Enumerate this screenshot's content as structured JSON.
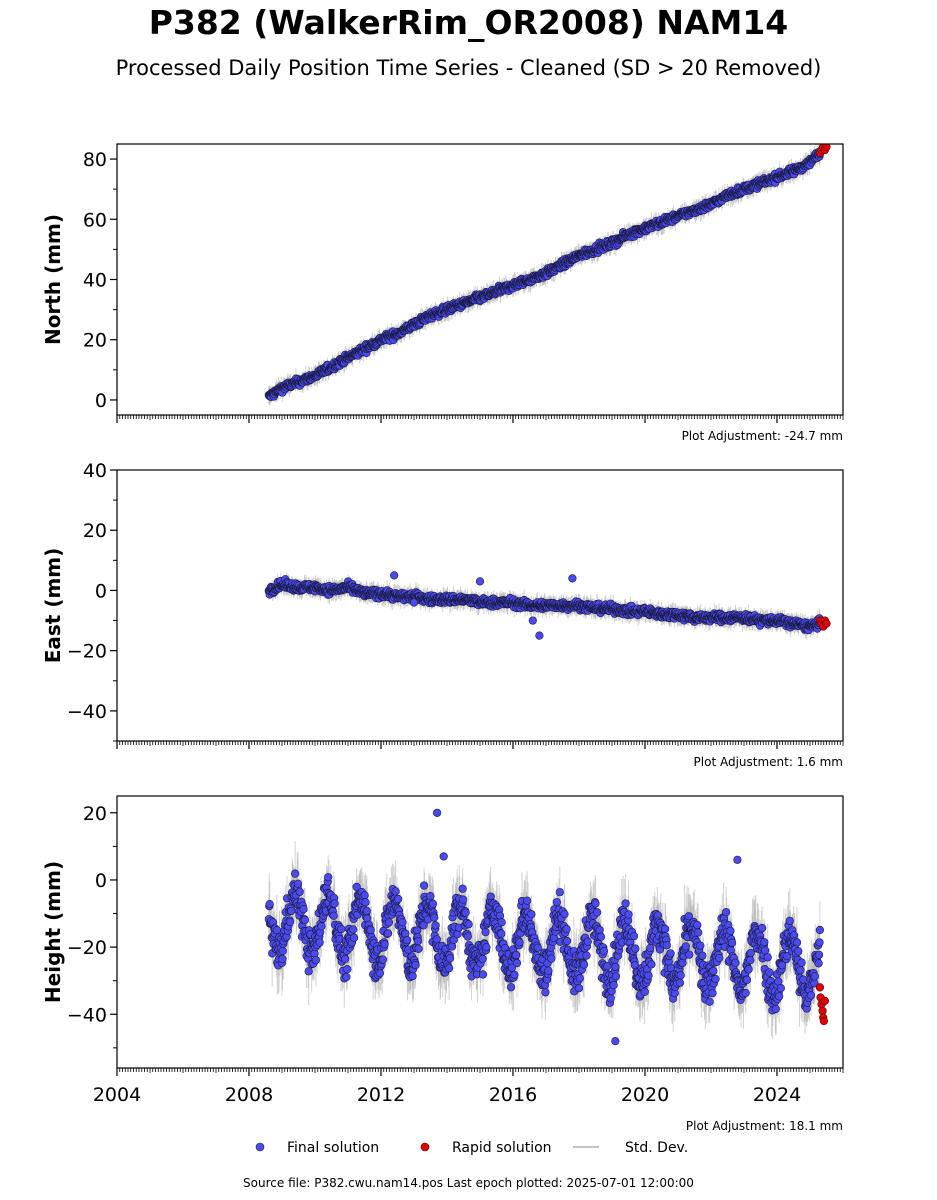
{
  "title": "P382 (WalkerRim_OR2008) NAM14",
  "subtitle": "Processed Daily Position Time Series - Cleaned (SD > 20 Removed)",
  "source_note": "Source file: P382.cwu.nam14.pos  Last epoch plotted: 2025-07-01 12:00:00",
  "colors": {
    "final": "#4a4aee",
    "final_edge": "#1a1a40",
    "rapid": "#e00000",
    "stddev": "#b0b0b0"
  },
  "chart_data": [
    {
      "type": "scatter",
      "ylabel": "North (mm)",
      "xlim": [
        2004.0,
        2026.0
      ],
      "ylim": [
        -5,
        85
      ],
      "yticks": [
        0,
        20,
        40,
        60,
        80
      ],
      "xtick_labels_shown": false,
      "adjustment": "Plot Adjustment: -24.7 mm",
      "series": [
        {
          "name": "Final solution",
          "x": [
            2008.6,
            2009.0,
            2009.5,
            2010.0,
            2010.5,
            2011.0,
            2011.5,
            2012.0,
            2012.5,
            2013.0,
            2013.5,
            2014.0,
            2014.5,
            2015.0,
            2015.5,
            2016.0,
            2016.5,
            2017.0,
            2017.5,
            2018.0,
            2018.5,
            2019.0,
            2019.5,
            2020.0,
            2020.5,
            2021.0,
            2021.5,
            2022.0,
            2022.5,
            2023.0,
            2023.5,
            2024.0,
            2024.5,
            2025.0,
            2025.3
          ],
          "y": [
            1,
            4,
            6,
            8,
            11,
            14,
            17,
            20,
            22,
            25,
            28,
            30,
            32,
            34,
            36,
            38,
            40,
            42,
            45,
            48,
            50,
            52,
            55,
            57,
            59,
            61,
            63,
            65,
            68,
            70,
            72,
            74,
            76,
            79,
            82
          ]
        },
        {
          "name": "Rapid solution",
          "x": [
            2025.3,
            2025.35,
            2025.4,
            2025.45,
            2025.5
          ],
          "y": [
            82,
            83,
            84,
            83,
            84
          ]
        }
      ]
    },
    {
      "type": "scatter",
      "ylabel": "East (mm)",
      "xlim": [
        2004.0,
        2026.0
      ],
      "ylim": [
        -50,
        40
      ],
      "yticks": [
        -40,
        -20,
        0,
        20,
        40
      ],
      "xtick_labels_shown": false,
      "adjustment": "Plot Adjustment: 1.6 mm",
      "series": [
        {
          "name": "Final solution",
          "x": [
            2008.6,
            2009.0,
            2009.5,
            2010.0,
            2010.5,
            2011.0,
            2011.5,
            2012.0,
            2012.5,
            2013.0,
            2013.5,
            2014.0,
            2014.5,
            2015.0,
            2015.5,
            2016.0,
            2016.5,
            2017.0,
            2017.5,
            2018.0,
            2018.5,
            2019.0,
            2019.5,
            2020.0,
            2020.5,
            2021.0,
            2021.5,
            2022.0,
            2022.5,
            2023.0,
            2023.5,
            2024.0,
            2024.5,
            2025.0,
            2025.3
          ],
          "y": [
            0,
            2,
            1,
            1,
            0,
            1,
            -1,
            -1,
            -2,
            -2,
            -3,
            -3,
            -3,
            -4,
            -4,
            -4,
            -5,
            -5,
            -5,
            -5,
            -6,
            -6,
            -7,
            -7,
            -8,
            -8,
            -9,
            -9,
            -9,
            -9,
            -10,
            -10,
            -11,
            -12,
            -11
          ],
          "outliers": {
            "x": [
              2013.0,
              2015.0,
              2016.6,
              2016.8,
              2017.8,
              2012.4
            ],
            "y": [
              -4,
              3,
              -10,
              -15,
              4,
              5
            ]
          }
        },
        {
          "name": "Rapid solution",
          "x": [
            2025.3,
            2025.35,
            2025.4,
            2025.45,
            2025.5
          ],
          "y": [
            -10,
            -11,
            -12,
            -10,
            -11
          ]
        }
      ]
    },
    {
      "type": "scatter",
      "ylabel": "Height (mm)",
      "xlim": [
        2004.0,
        2026.0
      ],
      "ylim": [
        -56,
        25
      ],
      "yticks": [
        -40,
        -20,
        0,
        20
      ],
      "xticks": [
        2004,
        2008,
        2012,
        2016,
        2020,
        2024
      ],
      "xtick_labels_shown": true,
      "adjustment": "Plot Adjustment: 18.1 mm",
      "series": [
        {
          "name": "Final solution",
          "mean_trend": {
            "x": [
              2008.6,
              2025.3
            ],
            "y": [
              -12,
              -26
            ]
          },
          "seasonal_amplitude_mm": 9,
          "noise_mm": 6,
          "outliers": {
            "x": [
              2013.7,
              2013.9,
              2019.1,
              2022.8
            ],
            "y": [
              20,
              7,
              -48,
              6
            ]
          }
        },
        {
          "name": "Rapid solution",
          "x": [
            2025.3,
            2025.32,
            2025.35,
            2025.38,
            2025.4,
            2025.42,
            2025.45
          ],
          "y": [
            -32,
            -35,
            -37,
            -39,
            -41,
            -42,
            -36
          ]
        }
      ]
    }
  ],
  "legend": {
    "position": "bottom-center",
    "items": [
      {
        "key": "final",
        "label": "Final solution"
      },
      {
        "key": "rapid",
        "label": "Rapid solution"
      },
      {
        "key": "stddev",
        "label": "Std. Dev."
      }
    ]
  }
}
